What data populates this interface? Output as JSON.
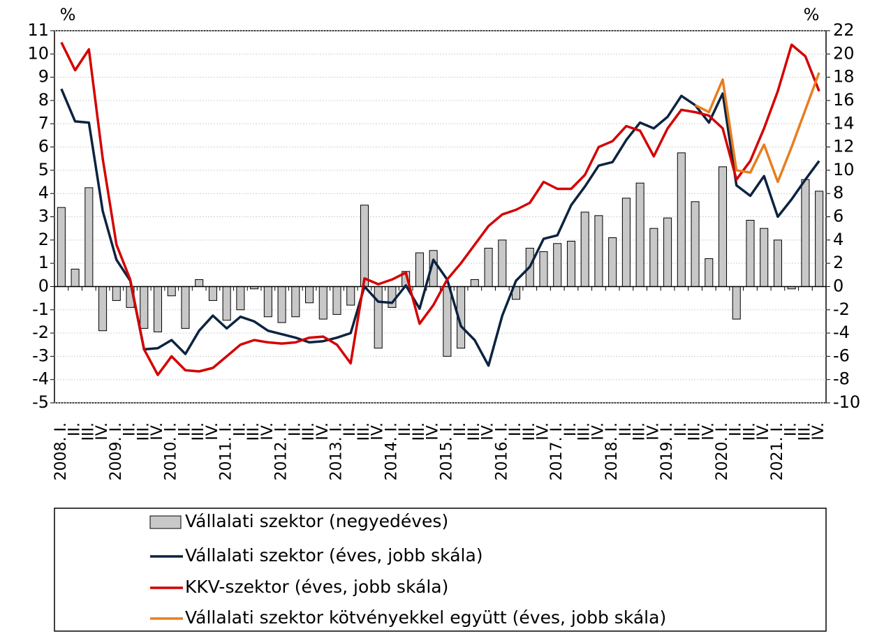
{
  "chart_data": {
    "type": "combo",
    "y_unit": "%",
    "y2_unit": "%",
    "categories": [
      "2008. I.",
      "II.",
      "III.",
      "IV.",
      "2009. I.",
      "II.",
      "III.",
      "IV.",
      "2010. I.",
      "II.",
      "III.",
      "IV.",
      "2011. I.",
      "II.",
      "III.",
      "IV.",
      "2012. I.",
      "II.",
      "III.",
      "IV.",
      "2013. I.",
      "II.",
      "III.",
      "IV.",
      "2014. I.",
      "II.",
      "III.",
      "IV.",
      "2015. I.",
      "II.",
      "III.",
      "IV.",
      "2016. I.",
      "II.",
      "III.",
      "IV.",
      "2017. I.",
      "II.",
      "III.",
      "IV.",
      "2018. I.",
      "II.",
      "III.",
      "IV.",
      "2019. I.",
      "II.",
      "III.",
      "IV.",
      "2020. I.",
      "II.",
      "III.",
      "IV.",
      "2021. I.",
      "II.",
      "III.",
      "IV."
    ],
    "ylim": [
      -5,
      11
    ],
    "yticks": [
      -5,
      -4,
      -3,
      -2,
      -1,
      0,
      1,
      2,
      3,
      4,
      5,
      6,
      7,
      8,
      9,
      10,
      11
    ],
    "y2lim": [
      -10,
      22
    ],
    "y2ticks": [
      -10,
      -8,
      -6,
      -4,
      -2,
      0,
      2,
      4,
      6,
      8,
      10,
      12,
      14,
      16,
      18,
      20,
      22
    ],
    "series": [
      {
        "name": "Vállalati szektor (negyedéves)",
        "type": "bar",
        "color": "#c8c8c8",
        "values": [
          3.4,
          0.75,
          4.25,
          -1.9,
          -0.6,
          -0.9,
          -1.8,
          -1.95,
          -0.4,
          -1.8,
          0.3,
          -0.6,
          -1.45,
          -1.0,
          -0.1,
          -1.3,
          -1.55,
          -1.3,
          -0.7,
          -1.4,
          -1.2,
          -0.8,
          3.5,
          -2.65,
          -0.9,
          0.65,
          1.45,
          1.55,
          -3.0,
          -2.65,
          0.3,
          1.65,
          2.0,
          -0.55,
          1.65,
          1.5,
          1.85,
          1.95,
          3.2,
          3.05,
          2.1,
          3.8,
          4.45,
          2.5,
          2.95,
          5.75,
          3.65,
          1.2,
          5.15,
          -1.4,
          2.85,
          2.5,
          2.0,
          -0.1,
          4.6,
          4.1
        ]
      },
      {
        "name": "Vállalati szektor (éves, jobb skála)",
        "type": "line",
        "axis": "y2",
        "color": "#0c2340",
        "values": [
          17.0,
          14.2,
          14.1,
          6.5,
          2.3,
          0.5,
          -5.4,
          -5.3,
          -4.6,
          -5.8,
          -3.8,
          -2.5,
          -3.6,
          -2.6,
          -3.0,
          -3.8,
          -4.1,
          -4.4,
          -4.8,
          -4.7,
          -4.4,
          -4.0,
          0.0,
          -1.3,
          -1.4,
          0.1,
          -1.9,
          2.3,
          0.6,
          -3.4,
          -4.6,
          -6.8,
          -2.5,
          0.5,
          1.7,
          4.1,
          4.4,
          7.0,
          8.6,
          10.4,
          10.7,
          12.6,
          14.1,
          13.6,
          14.6,
          16.4,
          15.6,
          14.1,
          16.6,
          8.7,
          7.8,
          9.5,
          6.0,
          7.5,
          9.2,
          10.8
        ]
      },
      {
        "name": "KKV-szektor (éves, jobb skála)",
        "type": "line",
        "axis": "y2",
        "color": "#d40000",
        "values": [
          21.0,
          18.6,
          20.4,
          11.0,
          3.6,
          0.6,
          -5.4,
          -7.6,
          -6.0,
          -7.2,
          -7.3,
          -7.0,
          -6.0,
          -5.0,
          -4.6,
          -4.8,
          -4.9,
          -4.8,
          -4.4,
          -4.3,
          -5.0,
          -6.6,
          0.7,
          0.2,
          0.6,
          1.2,
          -3.2,
          -1.6,
          0.6,
          2.0,
          3.6,
          5.2,
          6.2,
          6.6,
          7.2,
          9.0,
          8.4,
          8.4,
          9.6,
          12.0,
          12.5,
          13.8,
          13.4,
          11.2,
          13.6,
          15.2,
          15.0,
          14.7,
          13.6,
          9.2,
          10.8,
          13.6,
          16.8,
          20.8,
          19.8,
          16.8
        ]
      },
      {
        "name": "Vállalati szektor kötvényekkel együtt (éves, jobb skála)",
        "type": "line",
        "axis": "y2",
        "color": "#e87d1e",
        "values": [
          null,
          null,
          null,
          null,
          null,
          null,
          null,
          null,
          null,
          null,
          null,
          null,
          null,
          null,
          null,
          null,
          null,
          null,
          null,
          null,
          null,
          null,
          null,
          null,
          null,
          null,
          null,
          null,
          null,
          null,
          null,
          null,
          null,
          null,
          null,
          null,
          null,
          null,
          null,
          null,
          null,
          null,
          null,
          null,
          null,
          null,
          15.6,
          15.0,
          17.8,
          10.0,
          9.8,
          12.2,
          9.0,
          12.0,
          15.2,
          18.4
        ]
      }
    ]
  }
}
